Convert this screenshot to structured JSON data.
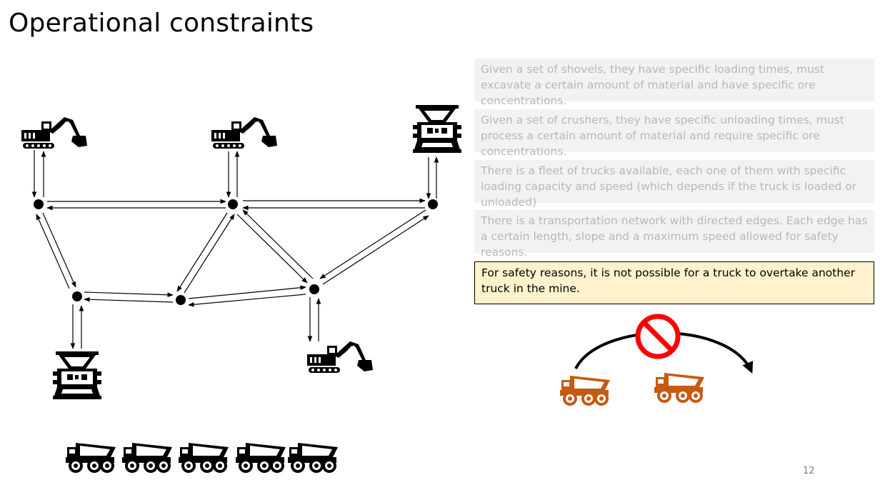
{
  "slide": {
    "title": "Operational constraints",
    "page_number": "12"
  },
  "constraints": [
    {
      "text": "Given a set of shovels, they have specific loading times, must excavate a certain amount of material and have specific ore concentrations.",
      "highlighted": false
    },
    {
      "text": "Given a set of crushers, they have specific unloading times, must process a certain amount of material and require specific ore concentrations.",
      "highlighted": false
    },
    {
      "text": "There is a fleet of trucks available, each one of them with specific loading capacity and speed (which depends if the truck is loaded or unloaded)",
      "highlighted": false
    },
    {
      "text": "There is a transportation network with directed edges. Each edge has a certain length, slope and a maximum speed allowed for safety reasons.",
      "highlighted": false
    },
    {
      "text": "For safety reasons, it is not possible for a truck to overtake another truck in the mine.",
      "highlighted": true
    }
  ],
  "icons": {
    "shovel": "excavator-icon",
    "crusher": "crusher-icon",
    "truck": "dump-truck-icon",
    "prohibited": "no-sign-icon"
  },
  "colors": {
    "highlight_bg": "#fff2cc",
    "muted_box_bg": "#f2f2f2",
    "muted_text": "#b8b8b8",
    "orange_truck": "#c55a11",
    "no_sign": "#ff0000"
  }
}
